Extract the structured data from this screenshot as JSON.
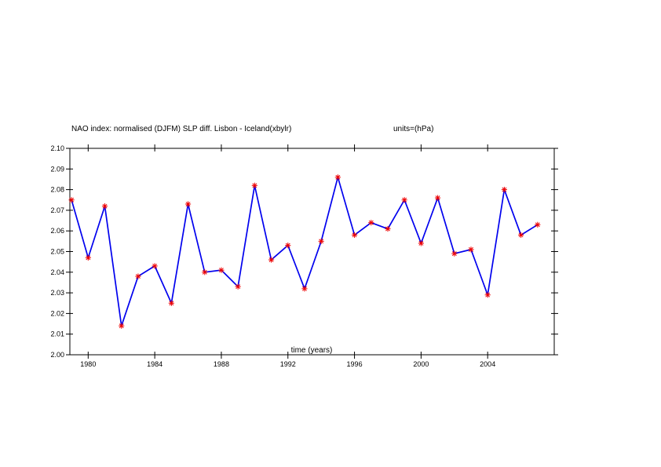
{
  "chart_data": {
    "type": "line",
    "title": "NAO index: normalised (DJFM) SLP diff. Lisbon - Iceland(xbylr)",
    "units": "units=(hPa)",
    "xlabel": "time (years)",
    "ylabel": "",
    "xlim": [
      1978.9,
      2008.0
    ],
    "ylim": [
      2.0,
      2.1
    ],
    "x_ticks": [
      1980,
      1984,
      1988,
      1992,
      1996,
      2000,
      2004
    ],
    "y_ticks": [
      2.0,
      2.01,
      2.02,
      2.03,
      2.04,
      2.05,
      2.06,
      2.07,
      2.08,
      2.09,
      2.1
    ],
    "y_tick_labels": [
      "2.00",
      "2.01",
      "2.02",
      "2.03",
      "2.04",
      "2.05",
      "2.06",
      "2.07",
      "2.08",
      "2.09",
      "2.10"
    ],
    "series": [
      {
        "name": "NAO index",
        "x": [
          1979,
          1980,
          1981,
          1982,
          1983,
          1984,
          1985,
          1986,
          1987,
          1988,
          1989,
          1990,
          1991,
          1992,
          1993,
          1994,
          1995,
          1996,
          1997,
          1998,
          1999,
          2000,
          2001,
          2002,
          2003,
          2004,
          2005,
          2006,
          2007
        ],
        "values": [
          2.075,
          2.047,
          2.072,
          2.014,
          2.038,
          2.043,
          2.025,
          2.073,
          2.04,
          2.041,
          2.033,
          2.082,
          2.046,
          2.053,
          2.032,
          2.055,
          2.086,
          2.058,
          2.064,
          2.061,
          2.075,
          2.054,
          2.076,
          2.049,
          2.051,
          2.029,
          2.08,
          2.058,
          2.063
        ],
        "line_color": "#0000ee",
        "marker_color": "#ee0000",
        "marker": "asterisk"
      }
    ]
  }
}
